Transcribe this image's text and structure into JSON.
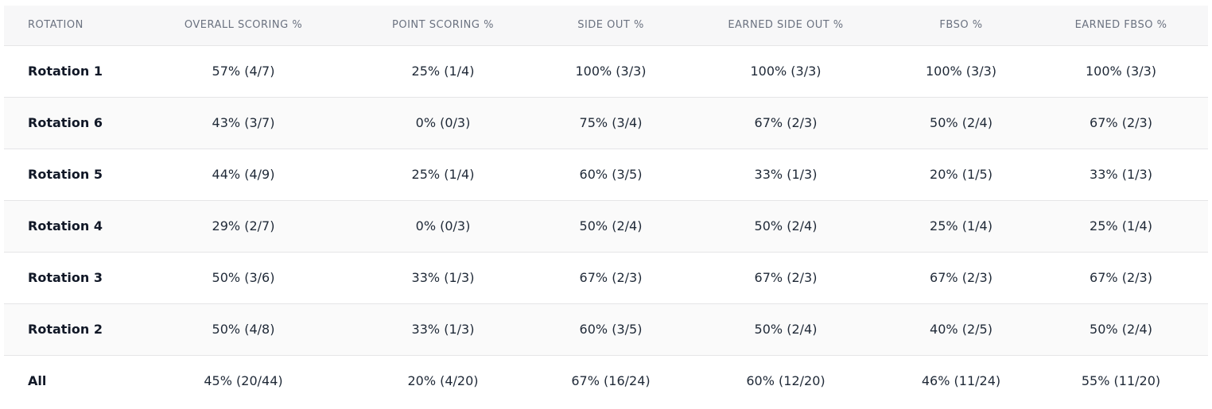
{
  "table": {
    "headers": [
      "ROTATION",
      "OVERALL SCORING %",
      "POINT SCORING %",
      "SIDE OUT %",
      "EARNED SIDE OUT %",
      "FBSO %",
      "EARNED FBSO %"
    ],
    "rows": [
      [
        "Rotation 1",
        "57% (4/7)",
        "25% (1/4)",
        "100% (3/3)",
        "100% (3/3)",
        "100% (3/3)",
        "100% (3/3)"
      ],
      [
        "Rotation 6",
        "43% (3/7)",
        "0% (0/3)",
        "75% (3/4)",
        "67% (2/3)",
        "50% (2/4)",
        "67% (2/3)"
      ],
      [
        "Rotation 5",
        "44% (4/9)",
        "25% (1/4)",
        "60% (3/5)",
        "33% (1/3)",
        "20% (1/5)",
        "33% (1/3)"
      ],
      [
        "Rotation 4",
        "29% (2/7)",
        "0% (0/3)",
        "50% (2/4)",
        "50% (2/4)",
        "25% (1/4)",
        "25% (1/4)"
      ],
      [
        "Rotation 3",
        "50% (3/6)",
        "33% (1/3)",
        "67% (2/3)",
        "67% (2/3)",
        "67% (2/3)",
        "67% (2/3)"
      ],
      [
        "Rotation 2",
        "50% (4/8)",
        "33% (1/3)",
        "60% (3/5)",
        "50% (2/4)",
        "40% (2/5)",
        "50% (2/4)"
      ],
      [
        "All",
        "45% (20/44)",
        "20% (4/20)",
        "67% (16/24)",
        "60% (12/20)",
        "46% (11/24)",
        "55% (11/20)"
      ]
    ]
  }
}
